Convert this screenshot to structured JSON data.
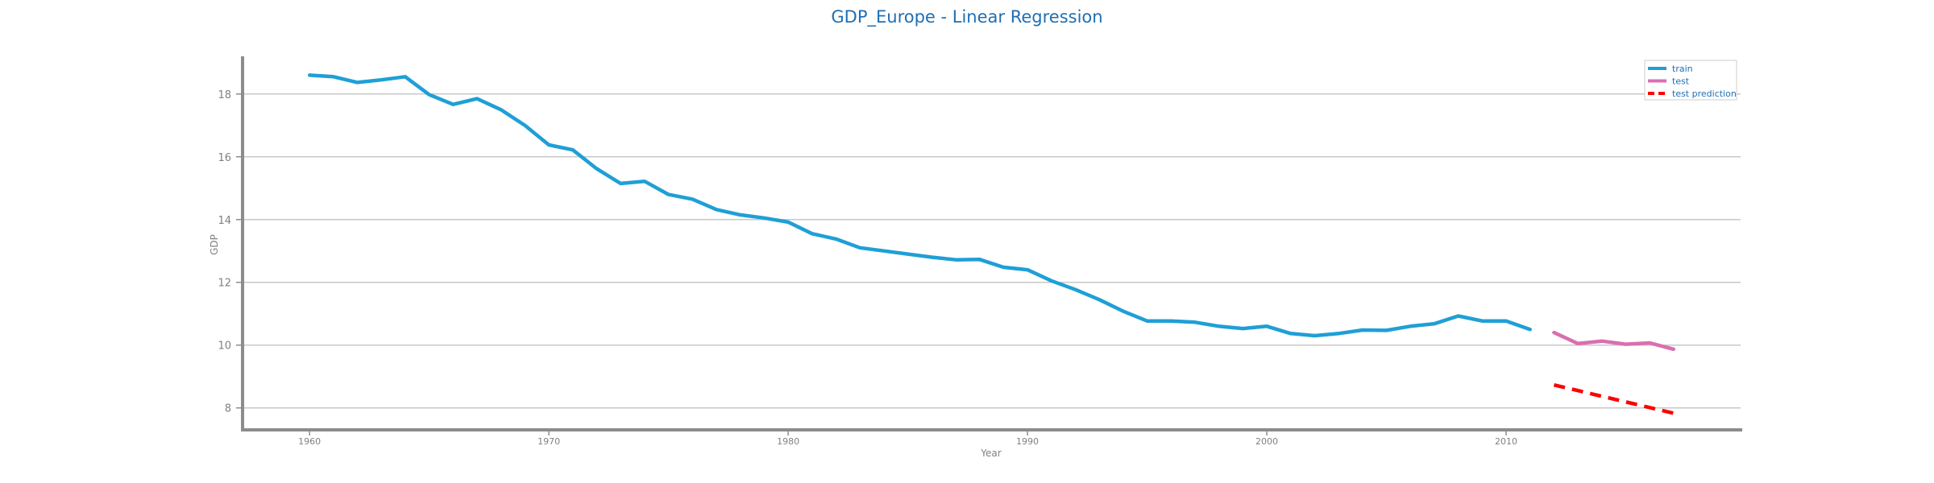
{
  "chart_data": {
    "type": "line",
    "title": "GDP_Europe - Linear Regression",
    "xlabel": "Year",
    "ylabel": "GDP",
    "xlim": [
      1957.2,
      2019.8
    ],
    "ylim": [
      7.3,
      19.2
    ],
    "x_ticks": [
      1960,
      1970,
      1980,
      1990,
      2000,
      2010
    ],
    "y_ticks": [
      8,
      10,
      12,
      14,
      16,
      18
    ],
    "grid": "horizontal",
    "legend_position": "top-right",
    "colors": {
      "title": "#1f6fb2",
      "legend_text": "#1f6fb2",
      "grid": "#c8c8c8",
      "axis": "#8c8c8c"
    },
    "series": [
      {
        "name": "train",
        "style": "solid",
        "color": "#1f9fd6",
        "x": [
          1960,
          1961,
          1962,
          1963,
          1964,
          1965,
          1966,
          1967,
          1968,
          1969,
          1970,
          1971,
          1972,
          1973,
          1974,
          1975,
          1976,
          1977,
          1978,
          1979,
          1980,
          1981,
          1982,
          1983,
          1984,
          1985,
          1986,
          1987,
          1988,
          1989,
          1990,
          1991,
          1992,
          1993,
          1994,
          1995,
          1996,
          1997,
          1998,
          1999,
          2000,
          2001,
          2002,
          2003,
          2004,
          2005,
          2006,
          2007,
          2008,
          2009,
          2010,
          2011
        ],
        "values": [
          18.6,
          18.55,
          18.37,
          18.45,
          18.55,
          17.98,
          17.67,
          17.85,
          17.5,
          17.0,
          16.38,
          16.22,
          15.62,
          15.15,
          15.22,
          14.8,
          14.65,
          14.32,
          14.15,
          14.05,
          13.92,
          13.55,
          13.38,
          13.1,
          13.0,
          12.9,
          12.8,
          12.72,
          12.73,
          12.48,
          12.4,
          12.05,
          11.77,
          11.45,
          11.08,
          10.77,
          10.77,
          10.73,
          10.6,
          10.53,
          10.6,
          10.37,
          10.3,
          10.37,
          10.48,
          10.47,
          10.6,
          10.68,
          10.93,
          10.77,
          10.77,
          10.5
        ]
      },
      {
        "name": "test",
        "style": "solid",
        "color": "#d96fb0",
        "x": [
          2012,
          2013,
          2014,
          2015,
          2016,
          2017
        ],
        "values": [
          10.4,
          10.05,
          10.13,
          10.03,
          10.07,
          9.87
        ]
      },
      {
        "name": "test prediction",
        "style": "dashed",
        "color": "#ff0000",
        "x": [
          2012,
          2017
        ],
        "values": [
          8.73,
          7.83
        ]
      }
    ]
  }
}
